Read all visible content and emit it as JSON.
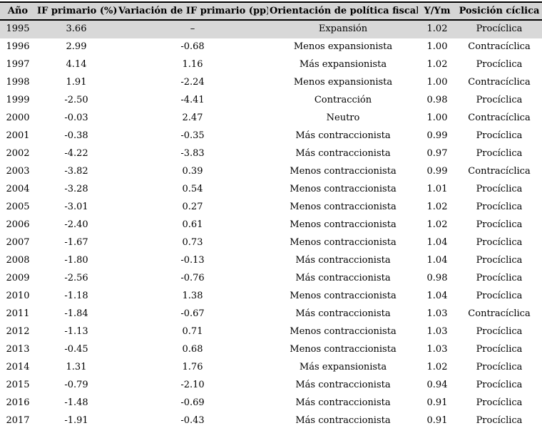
{
  "colors": {
    "header_bg": "#d4d4d4",
    "highlight_row_bg": "#d8d8d8",
    "rule": "#000000",
    "text": "#000000",
    "background": "#ffffff"
  },
  "chart_data": {
    "type": "table",
    "columns": [
      "Año",
      "IF primario (%)",
      "Variación de IF primario (pp)",
      "Orientación de política fiscal",
      "Y/Ym",
      "Posición cíclica"
    ],
    "rows": [
      [
        "1995",
        "3.66",
        "–",
        "Expansión",
        "1.02",
        "Procíclica"
      ],
      [
        "1996",
        "2.99",
        "-0.68",
        "Menos expansionista",
        "1.00",
        "Contracíclica"
      ],
      [
        "1997",
        "4.14",
        "1.16",
        "Más expansionista",
        "1.02",
        "Procíclica"
      ],
      [
        "1998",
        "1.91",
        "-2.24",
        "Menos expansionista",
        "1.00",
        "Contracíclica"
      ],
      [
        "1999",
        "-2.50",
        "-4.41",
        "Contracción",
        "0.98",
        "Procíclica"
      ],
      [
        "2000",
        "-0.03",
        "2.47",
        "Neutro",
        "1.00",
        "Contracíclica"
      ],
      [
        "2001",
        "-0.38",
        "-0.35",
        "Más contraccionista",
        "0.99",
        "Procíclica"
      ],
      [
        "2002",
        "-4.22",
        "-3.83",
        "Más contraccionista",
        "0.97",
        "Procíclica"
      ],
      [
        "2003",
        "-3.82",
        "0.39",
        "Menos contraccionista",
        "0.99",
        "Contracíclica"
      ],
      [
        "2004",
        "-3.28",
        "0.54",
        "Menos contraccionista",
        "1.01",
        "Procíclica"
      ],
      [
        "2005",
        "-3.01",
        "0.27",
        "Menos contraccionista",
        "1.02",
        "Procíclica"
      ],
      [
        "2006",
        "-2.40",
        "0.61",
        "Menos contraccionista",
        "1.02",
        "Procíclica"
      ],
      [
        "2007",
        "-1.67",
        "0.73",
        "Menos contraccionista",
        "1.04",
        "Procíclica"
      ],
      [
        "2008",
        "-1.80",
        "-0.13",
        "Más contraccionista",
        "1.04",
        "Procíclica"
      ],
      [
        "2009",
        "-2.56",
        "-0.76",
        "Más contraccionista",
        "0.98",
        "Procíclica"
      ],
      [
        "2010",
        "-1.18",
        "1.38",
        "Menos contraccionista",
        "1.04",
        "Procíclica"
      ],
      [
        "2011",
        "-1.84",
        "-0.67",
        "Más contraccionista",
        "1.03",
        "Contracíclica"
      ],
      [
        "2012",
        "-1.13",
        "0.71",
        "Menos contraccionista",
        "1.03",
        "Procíclica"
      ],
      [
        "2013",
        "-0.45",
        "0.68",
        "Menos contraccionista",
        "1.03",
        "Procíclica"
      ],
      [
        "2014",
        "1.31",
        "1.76",
        "Más expansionista",
        "1.02",
        "Procíclica"
      ],
      [
        "2015",
        "-0.79",
        "-2.10",
        "Más contraccionista",
        "0.94",
        "Procíclica"
      ],
      [
        "2016",
        "-1.48",
        "-0.69",
        "Más contraccionista",
        "0.91",
        "Procíclica"
      ],
      [
        "2017",
        "-1.91",
        "-0.43",
        "Más contraccionista",
        "0.91",
        "Procíclica"
      ]
    ],
    "column_slugs": [
      "year",
      "primary-fiscal-impulse",
      "variation-fiscal-impulse",
      "fiscal-policy-orientation",
      "y-over-ym",
      "cyclical-position"
    ],
    "title": "",
    "legend": "none",
    "grid": "off"
  }
}
